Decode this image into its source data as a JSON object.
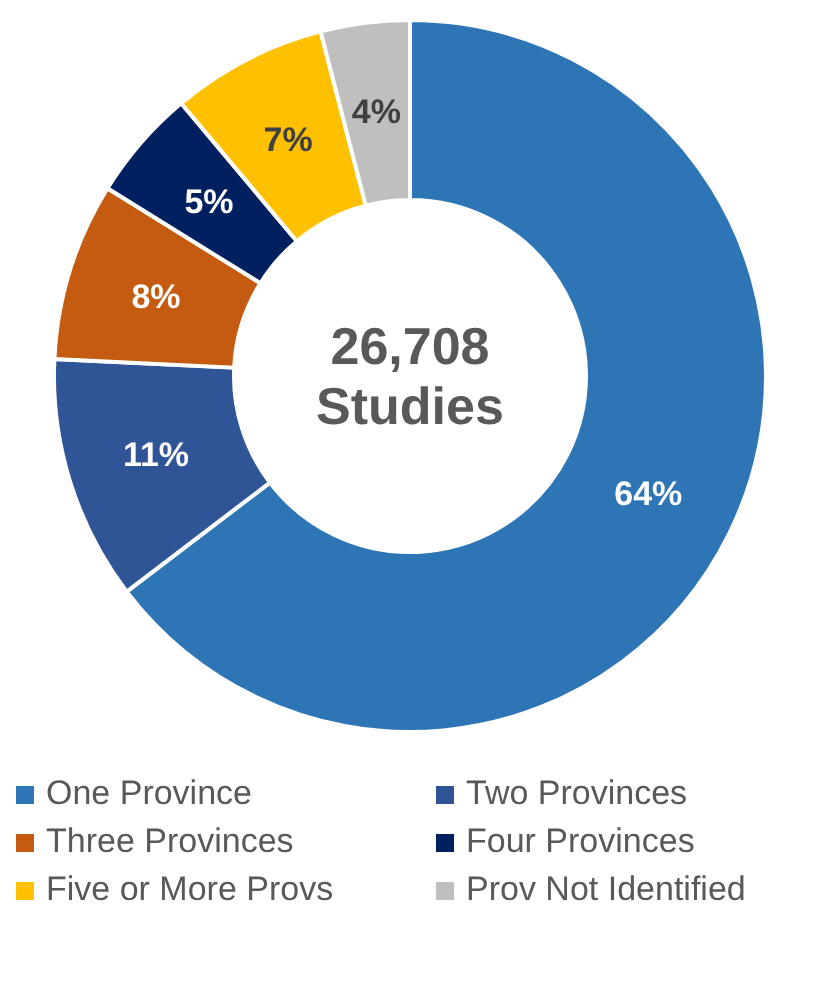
{
  "chart_data": {
    "type": "donut",
    "categories": [
      "One Province",
      "Two Provinces",
      "Three Provinces",
      "Four Provinces",
      "Five or More Provs",
      "Prov Not Identified"
    ],
    "values": [
      64,
      11,
      8,
      5,
      7,
      4
    ],
    "colors": [
      "#2e75b6",
      "#2f5597",
      "#c55a11",
      "#002060",
      "#ffc000",
      "#bfbfbf"
    ],
    "value_labels": [
      "64%",
      "11%",
      "8%",
      "5%",
      "7%",
      "4%"
    ],
    "annotations": [
      "26,708",
      "Studies"
    ],
    "legend": "bottom"
  }
}
